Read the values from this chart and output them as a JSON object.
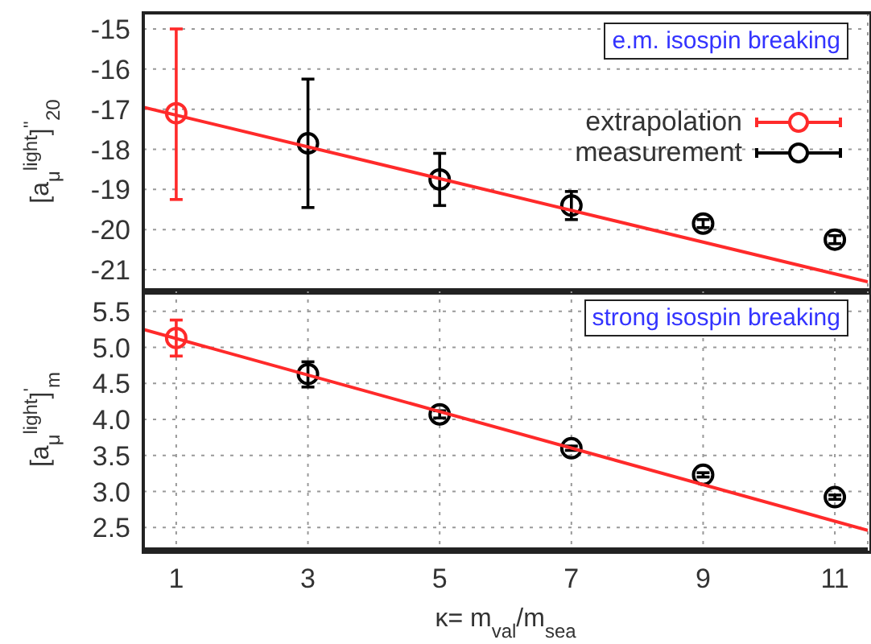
{
  "chart_data": [
    {
      "type": "scatter",
      "ylabel": "[a$_{μ}$$^{light}$]$^{''}$$_{20}$",
      "xlim": [
        0.5,
        11.5
      ],
      "xticks": [
        1,
        3,
        5,
        7,
        9,
        11
      ],
      "ylim": [
        -21.5,
        -14.6
      ],
      "yticks": [
        -21,
        -20,
        -19,
        -18,
        -17,
        -16,
        -15
      ],
      "tick_labels": "y",
      "grid": true,
      "marker": "circle",
      "legend": "right",
      "annotations": [
        "e.m. isospin breaking"
      ],
      "series": [
        {
          "name": "extrapolation",
          "color": "#ff2a2a",
          "x": [
            1
          ],
          "values": [
            -17.1
          ],
          "errors": [
            [
              -19.25,
              -15.0
            ]
          ]
        },
        {
          "name": "measurement",
          "color": "#000000",
          "x": [
            3,
            5,
            7,
            9,
            11
          ],
          "values": [
            -17.85,
            -18.75,
            -19.4,
            -19.85,
            -20.25
          ],
          "errors": [
            [
              -19.45,
              -16.25
            ],
            [
              -19.4,
              -18.1
            ],
            [
              -19.75,
              -19.05
            ],
            [
              -19.95,
              -19.75
            ],
            [
              -20.35,
              -20.15
            ]
          ]
        },
        {
          "type": "line",
          "color": "#ff2a2a",
          "marker": "none",
          "x": [
            0.5,
            11.5
          ],
          "values": [
            -16.95,
            -21.3
          ]
        }
      ]
    },
    {
      "type": "scatter",
      "xlabel": "κ= m$_{val}$/m$_{sea}$",
      "ylabel": "[a$_{μ}$$^{light}$]$^{'}$$_{m}$",
      "xlim": [
        0.5,
        11.5
      ],
      "xticks": [
        1,
        3,
        5,
        7,
        9,
        11
      ],
      "ylim": [
        2.2,
        5.8
      ],
      "yticks": [
        {
          "value": 2.5,
          "label": "2.5"
        },
        {
          "value": 3,
          "label": "3.0"
        },
        {
          "value": 3.5,
          "label": "3.5"
        },
        {
          "value": 4,
          "label": "4.0"
        },
        {
          "value": 4.5,
          "label": "4.5"
        },
        {
          "value": 5,
          "label": "5.0"
        },
        {
          "value": 5.5,
          "label": "5.5"
        }
      ],
      "grid": true,
      "marker": "circle",
      "annotations": [
        "strong isospin breaking"
      ],
      "series": [
        {
          "color": "#ff2a2a",
          "x": [
            1
          ],
          "values": [
            5.13
          ],
          "errors": [
            [
              4.88,
              5.38
            ]
          ]
        },
        {
          "color": "#000000",
          "x": [
            3,
            5,
            7,
            9,
            11
          ],
          "values": [
            4.63,
            4.07,
            3.6,
            3.23,
            2.92
          ],
          "errors": [
            [
              4.45,
              4.8
            ],
            [
              4.02,
              4.12
            ],
            [
              3.57,
              3.63
            ],
            [
              3.2,
              3.26
            ],
            [
              2.89,
              2.95
            ]
          ]
        },
        {
          "type": "line",
          "color": "#ff2a2a",
          "marker": "none",
          "x": [
            0.5,
            11.5
          ],
          "values": [
            5.25,
            2.46
          ]
        }
      ]
    }
  ]
}
